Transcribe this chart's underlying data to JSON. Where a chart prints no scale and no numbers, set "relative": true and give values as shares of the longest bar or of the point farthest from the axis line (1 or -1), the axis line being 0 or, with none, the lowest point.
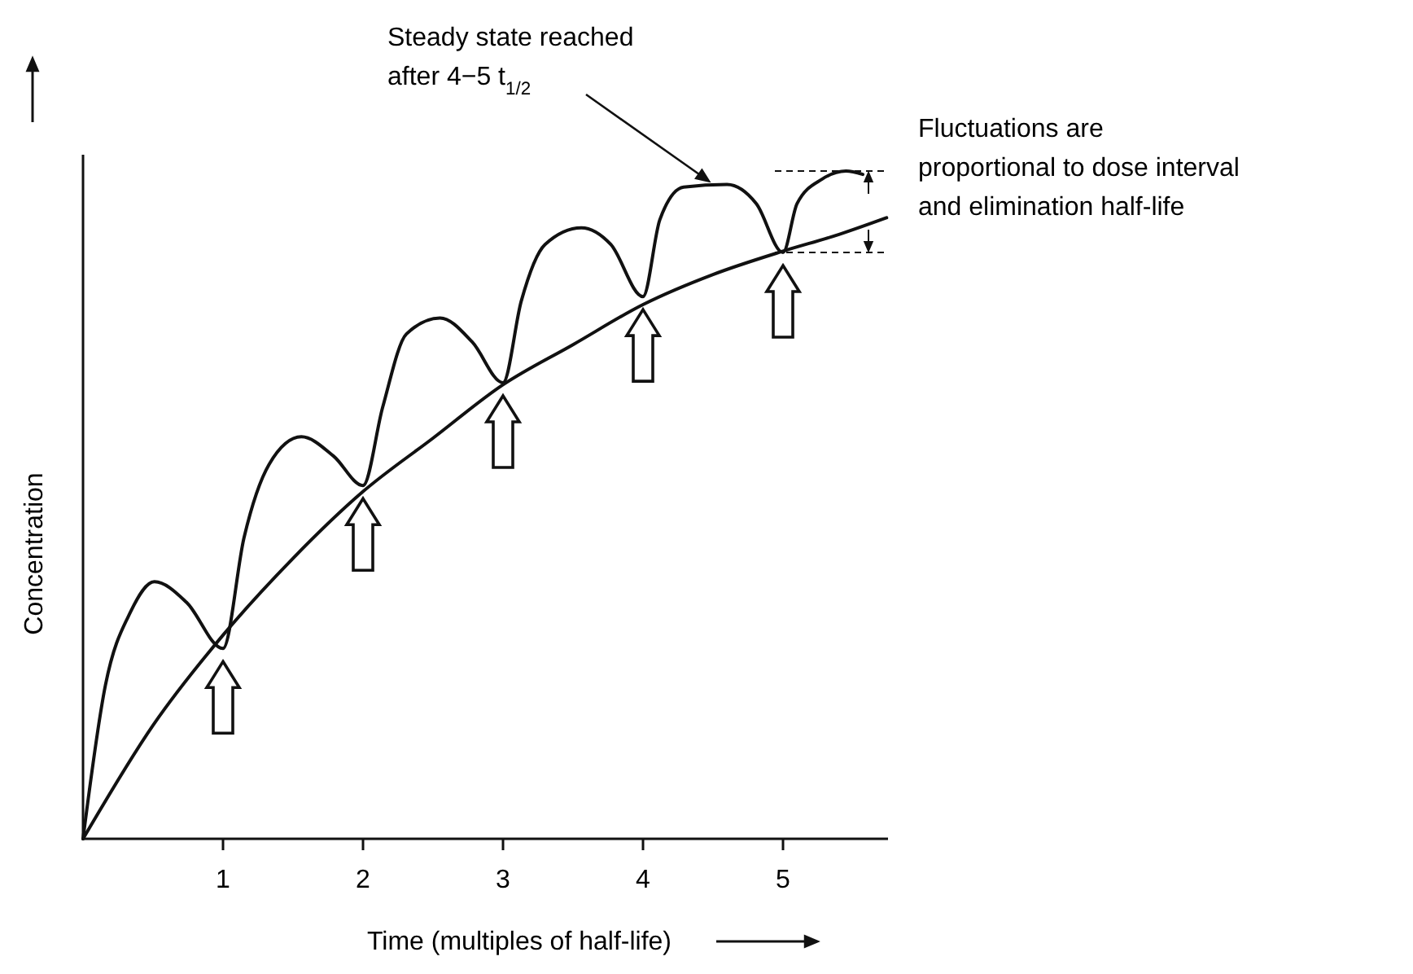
{
  "chart_data": {
    "type": "line",
    "relative": true,
    "xlabel": "Time (multiples of half-life)",
    "ylabel": "Concentration",
    "xlim": [
      0,
      5.75
    ],
    "xticks": [
      1,
      2,
      3,
      4,
      5
    ],
    "tick_labels": "x",
    "grid": false,
    "marker": "none",
    "line_style": "solid",
    "series": [
      {
        "color": "#111111",
        "x": [
          0,
          0.16,
          0.34,
          0.51,
          0.74,
          1.0,
          1.15,
          1.33,
          1.56,
          1.79,
          2.0,
          2.14,
          2.31,
          2.55,
          2.78,
          3.0,
          3.13,
          3.3,
          3.56,
          3.77,
          4.0,
          4.12,
          4.29,
          4.6,
          4.81,
          5.0,
          5.1,
          5.28,
          5.45,
          5.57
        ],
        "values": [
          0,
          0.23,
          0.34,
          0.385,
          0.354,
          0.285,
          0.451,
          0.561,
          0.602,
          0.573,
          0.529,
          0.646,
          0.756,
          0.78,
          0.744,
          0.683,
          0.805,
          0.89,
          0.915,
          0.89,
          0.812,
          0.927,
          0.976,
          0.98,
          0.951,
          0.878,
          0.951,
          0.988,
          1,
          0.995
        ]
      },
      {
        "color": "#111111",
        "x": [
          0,
          0.5,
          1,
          1.5,
          2,
          2.5,
          3,
          3.5,
          4,
          4.5,
          5,
          5.4,
          5.74
        ],
        "values": [
          0,
          0.17,
          0.305,
          0.42,
          0.52,
          0.6,
          0.68,
          0.74,
          0.8,
          0.845,
          0.88,
          0.905,
          0.93
        ]
      }
    ],
    "annotations": [
      {
        "text": "Steady state reached\nafter 4−5 t$_{1/2}$",
        "x": 4.47,
        "y": 0.98
      },
      "Fluctuations are\nproportional to dose interval\nand elimination half-life"
    ]
  }
}
